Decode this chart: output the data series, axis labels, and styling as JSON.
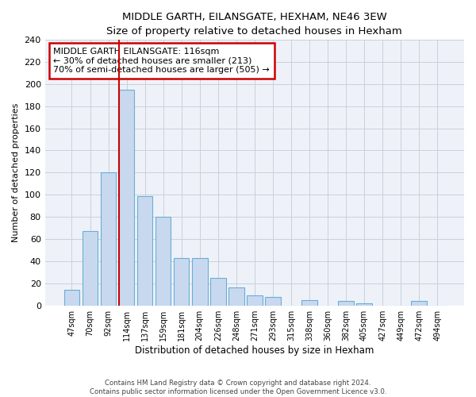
{
  "title": "MIDDLE GARTH, EILANSGATE, HEXHAM, NE46 3EW",
  "subtitle": "Size of property relative to detached houses in Hexham",
  "xlabel": "Distribution of detached houses by size in Hexham",
  "ylabel": "Number of detached properties",
  "bar_labels": [
    "47sqm",
    "70sqm",
    "92sqm",
    "114sqm",
    "137sqm",
    "159sqm",
    "181sqm",
    "204sqm",
    "226sqm",
    "248sqm",
    "271sqm",
    "293sqm",
    "315sqm",
    "338sqm",
    "360sqm",
    "382sqm",
    "405sqm",
    "427sqm",
    "449sqm",
    "472sqm",
    "494sqm"
  ],
  "bar_values": [
    14,
    67,
    120,
    195,
    99,
    80,
    43,
    43,
    25,
    16,
    9,
    8,
    0,
    5,
    0,
    4,
    2,
    0,
    0,
    4,
    0
  ],
  "bar_color": "#c8d9ef",
  "bar_edge_color": "#6aaed6",
  "vline_index": 3,
  "vline_color": "#cc0000",
  "annotation_title": "MIDDLE GARTH EILANSGATE: 116sqm",
  "annotation_line1": "← 30% of detached houses are smaller (213)",
  "annotation_line2": "70% of semi-detached houses are larger (505) →",
  "annotation_box_color": "#ffffff",
  "annotation_box_edge": "#cc0000",
  "ylim": [
    0,
    240
  ],
  "yticks": [
    0,
    20,
    40,
    60,
    80,
    100,
    120,
    140,
    160,
    180,
    200,
    220,
    240
  ],
  "footer_line1": "Contains HM Land Registry data © Crown copyright and database right 2024.",
  "footer_line2": "Contains public sector information licensed under the Open Government Licence v3.0.",
  "background_color": "#ffffff",
  "axes_bg_color": "#eef2f8",
  "grid_color": "#c8d0dc"
}
